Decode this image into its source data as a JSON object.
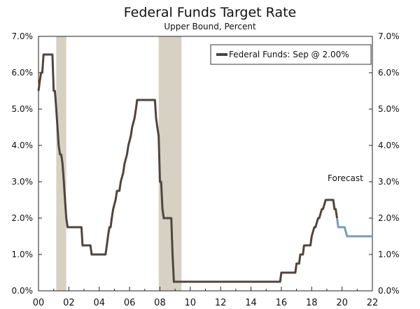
{
  "chart_data": {
    "type": "line",
    "title": "Federal Funds Target Rate",
    "subtitle": "Upper Bound, Percent",
    "xlabel": "",
    "ylabel": "",
    "xlim": [
      2000,
      2022
    ],
    "ylim": [
      0,
      7
    ],
    "y_ticks": [
      "0.0%",
      "1.0%",
      "2.0%",
      "3.0%",
      "4.0%",
      "5.0%",
      "6.0%",
      "7.0%"
    ],
    "y_tick_values": [
      0,
      1,
      2,
      3,
      4,
      5,
      6,
      7
    ],
    "x_ticks": [
      "00",
      "02",
      "04",
      "06",
      "08",
      "10",
      "12",
      "14",
      "16",
      "18",
      "20",
      "22"
    ],
    "x_tick_values": [
      2000,
      2002,
      2004,
      2006,
      2008,
      2010,
      2012,
      2014,
      2016,
      2018,
      2020,
      2022
    ],
    "legend": {
      "label": "Federal Funds: Sep @ 2.00%",
      "placement": "top-right"
    },
    "annotation": "Forecast",
    "recessions": [
      {
        "start": 2001.17,
        "end": 2001.83
      },
      {
        "start": 2007.92,
        "end": 2009.42
      }
    ],
    "colors": {
      "actual": "#4f4540",
      "forecast": "#7a9cb4",
      "recession": "#d6d1c2"
    },
    "series": [
      {
        "name": "Federal Funds",
        "kind": "actual",
        "x": [
          2000.0,
          2000.08,
          2000.08,
          2000.17,
          2000.17,
          2000.25,
          2000.25,
          2000.33,
          2000.33,
          2000.92,
          2001.0,
          2001.08,
          2001.17,
          2001.25,
          2001.33,
          2001.42,
          2001.5,
          2001.58,
          2001.67,
          2001.75,
          2001.83,
          2001.92,
          2002.83,
          2002.9,
          2003.42,
          2003.5,
          2004.42,
          2004.5,
          2004.58,
          2004.67,
          2004.75,
          2004.83,
          2004.92,
          2005.08,
          2005.17,
          2005.33,
          2005.42,
          2005.58,
          2005.67,
          2005.83,
          2005.92,
          2006.08,
          2006.17,
          2006.33,
          2006.42,
          2006.5,
          2007.67,
          2007.75,
          2007.83,
          2007.92,
          2008.0,
          2008.08,
          2008.17,
          2008.25,
          2008.33,
          2008.75,
          2008.83,
          2008.92,
          2015.92,
          2016.0,
          2016.92,
          2017.0,
          2017.17,
          2017.25,
          2017.42,
          2017.5,
          2017.92,
          2018.0,
          2018.17,
          2018.25,
          2018.42,
          2018.5,
          2018.67,
          2018.75,
          2018.92,
          2019.0,
          2019.42,
          2019.5,
          2019.58,
          2019.67
        ],
        "values": [
          5.5,
          5.75,
          5.75,
          6.0,
          6.0,
          6.0,
          6.0,
          6.5,
          6.5,
          6.5,
          5.5,
          5.5,
          5.0,
          4.5,
          4.0,
          3.75,
          3.75,
          3.5,
          3.0,
          2.5,
          2.0,
          1.75,
          1.75,
          1.25,
          1.25,
          1.0,
          1.0,
          1.25,
          1.5,
          1.75,
          1.75,
          2.0,
          2.25,
          2.5,
          2.75,
          2.75,
          3.0,
          3.25,
          3.5,
          3.75,
          4.0,
          4.25,
          4.5,
          4.75,
          5.0,
          5.25,
          5.25,
          4.75,
          4.5,
          4.25,
          3.0,
          3.0,
          2.25,
          2.0,
          2.0,
          2.0,
          1.0,
          0.25,
          0.25,
          0.5,
          0.5,
          0.75,
          0.75,
          1.0,
          1.0,
          1.25,
          1.25,
          1.5,
          1.75,
          1.75,
          2.0,
          2.0,
          2.25,
          2.25,
          2.5,
          2.5,
          2.5,
          2.25,
          2.25,
          2.0
        ]
      },
      {
        "name": "Federal Funds Forecast",
        "kind": "forecast",
        "x": [
          2019.67,
          2019.75,
          2020.17,
          2020.33,
          2022.0
        ],
        "values": [
          2.0,
          1.75,
          1.75,
          1.5,
          1.5
        ]
      }
    ]
  }
}
